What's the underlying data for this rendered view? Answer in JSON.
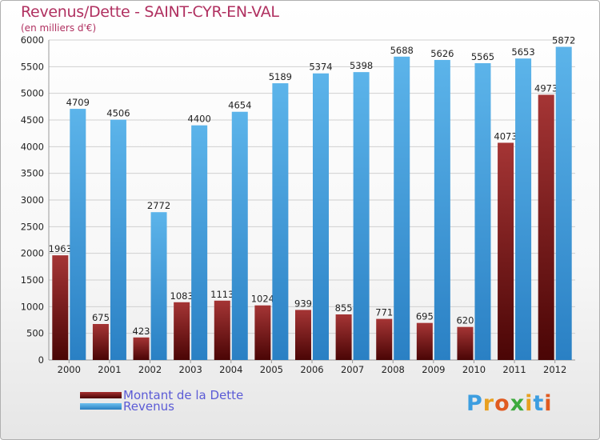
{
  "title": "Revenus/Dette - SAINT-CYR-EN-VAL",
  "subtitle": "(en milliers d'€)",
  "colors": {
    "dette": "#7a1a1a",
    "revenus": "#3d9ee0",
    "title": "#b03060",
    "legend_text": "#5b5bd6",
    "grid": "#d0d0d0"
  },
  "chart_data": {
    "type": "bar",
    "categories": [
      "2000",
      "2001",
      "2002",
      "2003",
      "2004",
      "2005",
      "2006",
      "2007",
      "2008",
      "2009",
      "2010",
      "2011",
      "2012"
    ],
    "series": [
      {
        "name": "Montant de la Dette",
        "values": [
          1963,
          675,
          423,
          1083,
          1113,
          1024,
          939,
          855,
          771,
          695,
          620,
          4073,
          4973
        ],
        "labels": [
          "1963",
          "675",
          "423",
          "1083",
          "1113",
          "1024",
          "939",
          "855",
          "771",
          "695",
          "620",
          "4073",
          "4973"
        ]
      },
      {
        "name": "Revenus",
        "values": [
          4709,
          4506,
          2772,
          4400,
          4654,
          5189,
          5374,
          5398,
          5688,
          5626,
          5565,
          5653,
          5872
        ],
        "labels": [
          "4709",
          "4506",
          "2772",
          "4400",
          "4654",
          "5189",
          "5374",
          "5398",
          "5688",
          "5626",
          "5565",
          "5653",
          "5872"
        ]
      }
    ],
    "ylim": [
      0,
      6000
    ],
    "yticks": [
      "0",
      "500",
      "1000",
      "1500",
      "2000",
      "2500",
      "3000",
      "3500",
      "4000",
      "4500",
      "5000",
      "5500",
      "6000"
    ],
    "grid": true,
    "legend_position": "bottom-left"
  },
  "legend": [
    {
      "label": "Montant de la Dette"
    },
    {
      "label": "Revenus"
    }
  ],
  "logo": {
    "letters": [
      "P",
      "r",
      "o",
      "x",
      "i",
      "t",
      "i"
    ],
    "colors": [
      "#3d9ee0",
      "#e8a020",
      "#e05a20",
      "#3daa3d",
      "#e8a020",
      "#3d9ee0",
      "#e05a20"
    ]
  }
}
